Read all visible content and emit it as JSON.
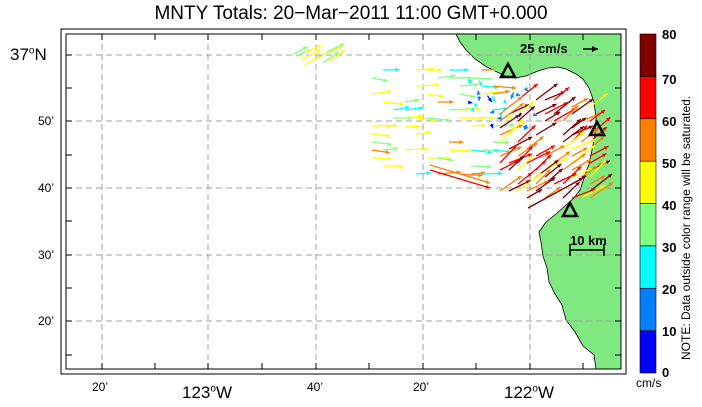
{
  "title": "MNTY Totals: 20−Mar−2011 11:00 GMT+0.000",
  "lat_labels": [
    {
      "deg": "37",
      "min": "",
      "hemi": "N",
      "style": "big"
    },
    {
      "deg": "",
      "min": "50’",
      "hemi": "",
      "style": "small"
    },
    {
      "deg": "",
      "min": "40’",
      "hemi": "",
      "style": "small"
    },
    {
      "deg": "",
      "min": "30’",
      "hemi": "",
      "style": "small"
    },
    {
      "deg": "",
      "min": "20’",
      "hemi": "",
      "style": "small"
    }
  ],
  "lon_labels": [
    {
      "text": "20’",
      "style": "small"
    },
    {
      "deg": "123",
      "hemi": "W",
      "style": "big"
    },
    {
      "text": "40’",
      "style": "small"
    },
    {
      "text": "20’",
      "style": "small"
    },
    {
      "deg": "122",
      "hemi": "W",
      "style": "big"
    }
  ],
  "reference_arrow": {
    "label": "25 cm/s"
  },
  "scale_bar": {
    "label": "10 km"
  },
  "colorbar": {
    "ticks": [
      "0",
      "10",
      "20",
      "30",
      "40",
      "50",
      "60",
      "70",
      "80"
    ],
    "unit": "cm/s",
    "colors": [
      "#0000ff",
      "#0080ff",
      "#00ffff",
      "#80ff80",
      "#ffff00",
      "#ff8000",
      "#ff0000",
      "#800000"
    ],
    "note": "NOTE: Data outside color range will be saturated."
  },
  "colors": {
    "land": "#80e880",
    "grid": "#a0a0a0",
    "station": "#000000"
  },
  "stations": [
    {
      "name": "station-north"
    },
    {
      "name": "station-east"
    },
    {
      "name": "station-south"
    }
  ]
}
